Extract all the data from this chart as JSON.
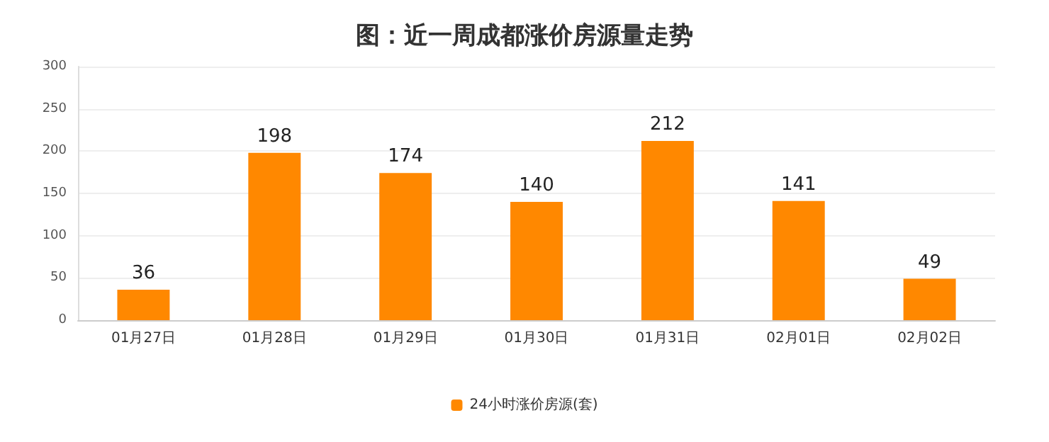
{
  "chart_data": {
    "type": "bar",
    "title": "图：近一周成都涨价房源量走势",
    "categories": [
      "01月27日",
      "01月28日",
      "01月29日",
      "01月30日",
      "01月31日",
      "02月01日",
      "02月02日"
    ],
    "series": [
      {
        "name": "24小时涨价房源(套)",
        "color": "#ff8800",
        "values": [
          36,
          198,
          174,
          140,
          212,
          141,
          49
        ]
      }
    ],
    "ylim": [
      0,
      300
    ],
    "yticks": [
      0,
      50,
      100,
      150,
      200,
      250,
      300
    ],
    "grid": "y",
    "legend": "bottom",
    "data_labels": true
  }
}
